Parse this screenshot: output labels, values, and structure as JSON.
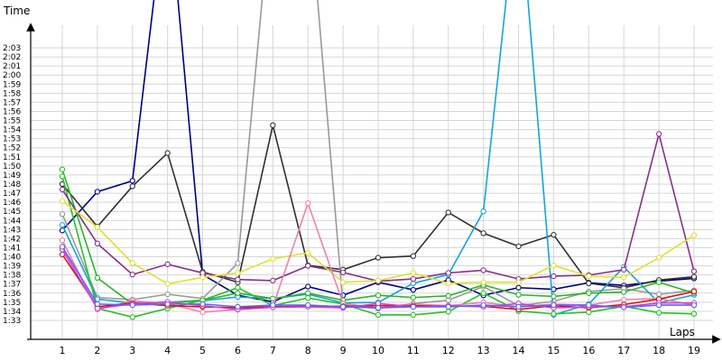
{
  "chart_data": {
    "type": "line",
    "title": "",
    "xlabel": "Laps",
    "ylabel": "Time",
    "x": [
      1,
      2,
      3,
      4,
      5,
      6,
      7,
      8,
      9,
      10,
      11,
      12,
      13,
      14,
      15,
      16,
      17,
      18,
      19
    ],
    "xlim": [
      0.5,
      19.5
    ],
    "ylim": [
      1.54,
      2.07
    ],
    "y_unit": "minutes",
    "grid": "horizontal-and-vertical",
    "legend": "none",
    "y_tick_labels": [
      "1:33",
      "1:34",
      "1:35",
      "1:36",
      "1:37",
      "1:38",
      "1:39",
      "1:40",
      "1:41",
      "1:42",
      "1:43",
      "1:44",
      "1:45",
      "1:46",
      "1:47",
      "1:48",
      "1:49",
      "1:50",
      "1:51",
      "1:52",
      "1:53",
      "1:54",
      "1:55",
      "1:56",
      "1:57",
      "1:58",
      "1:59",
      "2:00",
      "2:01",
      "2:02",
      "2:03"
    ],
    "y_tick_values": [
      1.55,
      1.5667,
      1.5833,
      1.6,
      1.6167,
      1.6333,
      1.65,
      1.6667,
      1.6833,
      1.7,
      1.7167,
      1.7333,
      1.75,
      1.7667,
      1.7833,
      1.8,
      1.8167,
      1.8333,
      1.85,
      1.8667,
      1.8833,
      1.9,
      1.9167,
      1.9333,
      1.95,
      1.9667,
      1.9833,
      2.0,
      2.0167,
      2.0333,
      2.05
    ],
    "x_tick_labels": [
      "1",
      "2",
      "3",
      "4",
      "5",
      "6",
      "7",
      "8",
      "9",
      "10",
      "11",
      "12",
      "13",
      "14",
      "15",
      "16",
      "17",
      "18",
      "19"
    ],
    "series": [
      {
        "color": "#000080",
        "values": [
          1.715,
          1.786,
          1.806,
          2.35,
          1.634,
          1.596,
          1.584,
          1.612,
          1.596,
          1.62,
          1.606,
          1.624,
          1.596,
          1.61,
          1.607,
          1.619,
          1.614,
          1.622,
          1.627
        ]
      },
      {
        "color": "#303030",
        "values": [
          1.8,
          1.722,
          1.796,
          1.857,
          1.639,
          1.62,
          1.908,
          1.651,
          1.643,
          1.665,
          1.668,
          1.748,
          1.71,
          1.686,
          1.707,
          1.618,
          1.61,
          1.624,
          1.63
        ]
      },
      {
        "color": "#999999",
        "values": [
          1.745,
          1.592,
          1.588,
          1.598,
          1.59,
          1.655,
          2.35,
          2.35,
          1.577,
          1.572,
          1.581,
          1.587,
          1.612,
          1.577,
          1.585,
          1.603,
          1.608,
          1.598,
          1.605
        ]
      },
      {
        "color": "#16a2e0",
        "values": [
          1.725,
          1.589,
          1.582,
          1.583,
          1.586,
          1.593,
          1.59,
          1.598,
          1.582,
          1.583,
          1.618,
          1.634,
          1.75,
          2.35,
          1.56,
          1.58,
          1.648,
          1.582,
          1.597
        ]
      },
      {
        "color": "#2ab52a",
        "values": [
          1.827,
          1.628,
          1.58,
          1.583,
          1.587,
          1.6,
          1.59,
          1.6,
          1.587,
          1.596,
          1.592,
          1.595,
          1.615,
          1.597,
          1.594,
          1.6,
          1.602,
          1.62,
          1.6
        ]
      },
      {
        "color": "#22c422",
        "values": [
          1.814,
          1.572,
          1.556,
          1.572,
          1.587,
          1.61,
          1.577,
          1.591,
          1.58,
          1.56,
          1.56,
          1.566,
          1.6,
          1.567,
          1.562,
          1.565,
          1.576,
          1.564,
          1.562
        ]
      },
      {
        "color": "#893089",
        "values": [
          1.79,
          1.691,
          1.634,
          1.653,
          1.637,
          1.625,
          1.623,
          1.65,
          1.638,
          1.622,
          1.626,
          1.637,
          1.642,
          1.626,
          1.631,
          1.633,
          1.643,
          1.892,
          1.64
        ]
      },
      {
        "color": "#e0e030",
        "values": [
          1.769,
          1.721,
          1.655,
          1.617,
          1.629,
          1.637,
          1.663,
          1.674,
          1.62,
          1.623,
          1.637,
          1.618,
          1.62,
          1.62,
          1.651,
          1.631,
          1.629,
          1.665,
          1.706
        ]
      },
      {
        "color": "#f080b0",
        "values": [
          1.697,
          1.57,
          1.586,
          1.581,
          1.565,
          1.57,
          1.575,
          1.765,
          1.581,
          1.573,
          1.58,
          1.577,
          1.583,
          1.575,
          1.58,
          1.578,
          1.588,
          1.59,
          1.578
        ]
      },
      {
        "color": "#e01010",
        "values": [
          1.671,
          1.575,
          1.582,
          1.577,
          1.575,
          1.573,
          1.575,
          1.576,
          1.576,
          1.577,
          1.577,
          1.576,
          1.576,
          1.57,
          1.577,
          1.573,
          1.579,
          1.589,
          1.603
        ]
      },
      {
        "color": "#d040d0",
        "values": [
          1.68,
          1.572,
          1.58,
          1.584,
          1.577,
          1.57,
          1.574,
          1.575,
          1.573,
          1.581,
          1.575,
          1.577,
          1.575,
          1.581,
          1.573,
          1.575,
          1.575,
          1.582,
          1.582
        ]
      },
      {
        "color": "#6060ff",
        "values": [
          1.685,
          1.58,
          1.578,
          1.58,
          1.58,
          1.575,
          1.578,
          1.578,
          1.575,
          1.573,
          1.575,
          1.575,
          1.578,
          1.575,
          1.578,
          1.578,
          1.574,
          1.578,
          1.578
        ]
      }
    ]
  }
}
